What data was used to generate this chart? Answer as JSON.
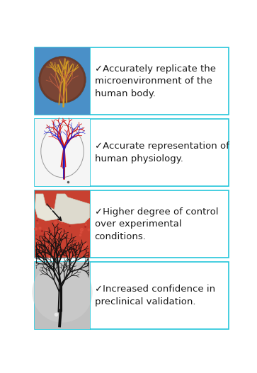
{
  "bg_color": "#ffffff",
  "border_color": "#26c6da",
  "border_lw": 1.2,
  "num_rows": 4,
  "row_texts": [
    "✓Accurately replicate the\nmicroenvironment of the\nhuman body.",
    "✓Accurate representation of\nhuman physiology.",
    "✓Higher degree of control\nover experimental\nconditions.",
    "✓Increased confidence in\npreclinical validation."
  ],
  "text_fontsize": 9.5,
  "text_color": "#1a1a1a",
  "checkmark_color": "#1a1a1a"
}
